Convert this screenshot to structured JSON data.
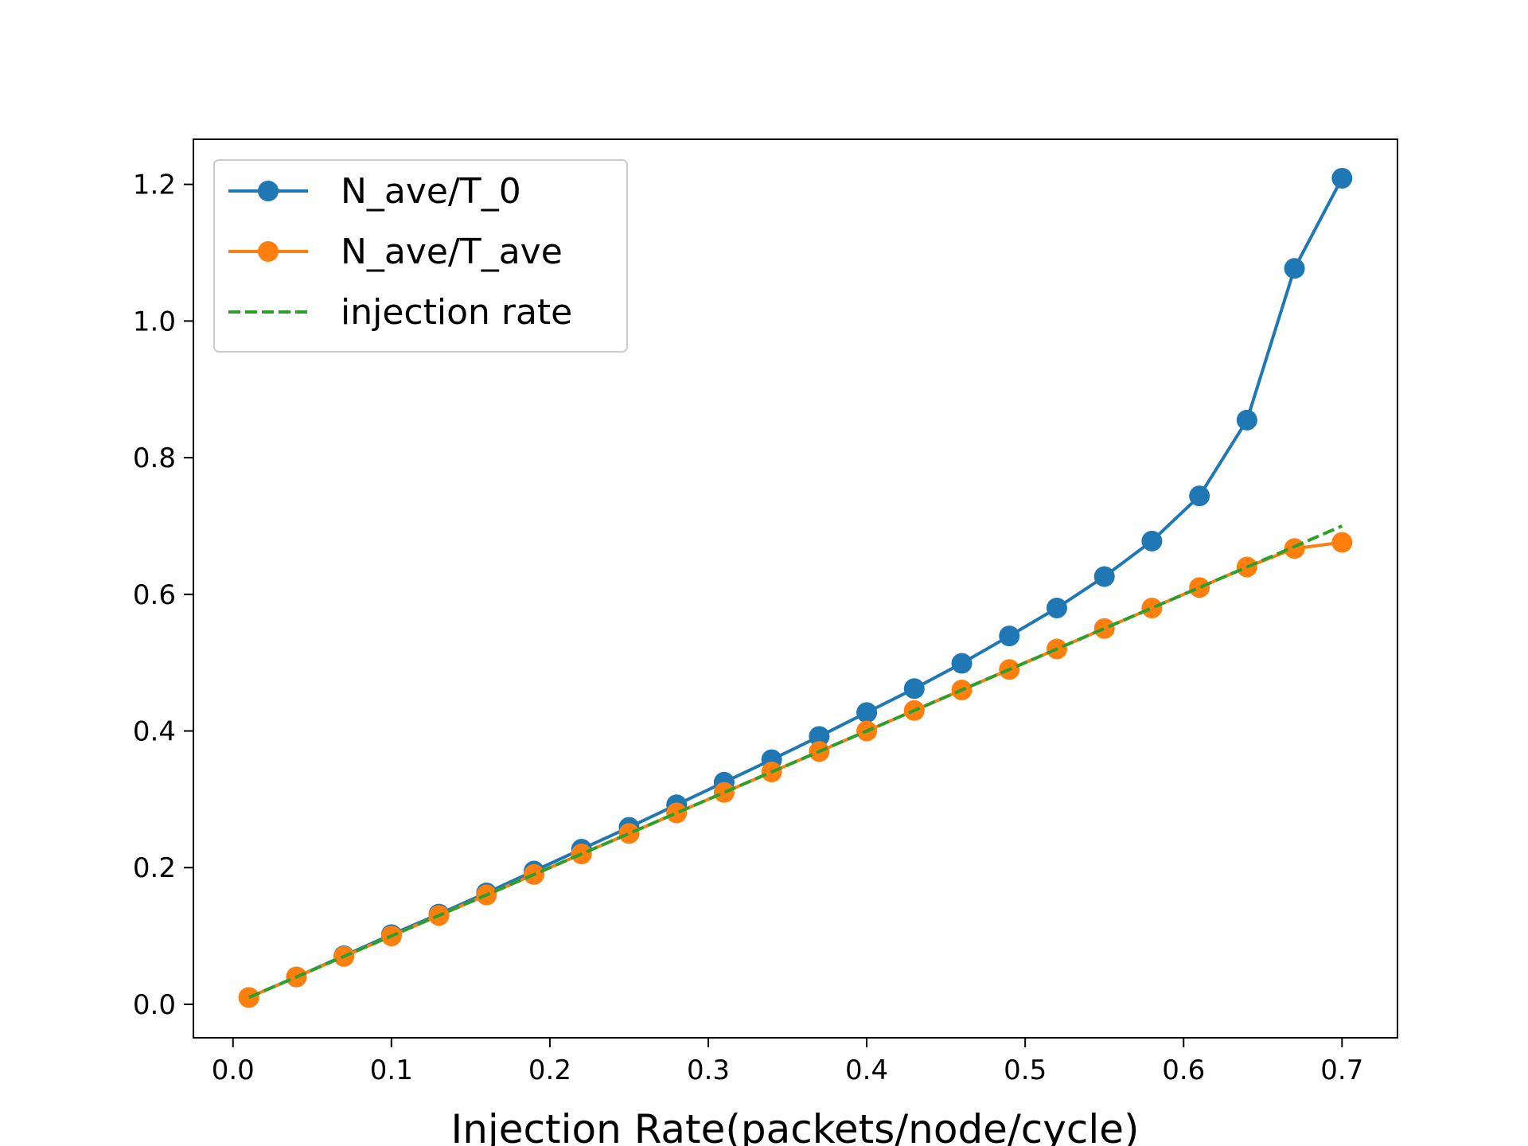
{
  "chart_data": {
    "type": "line",
    "title": "",
    "xlabel": "Injection Rate(packets/node/cycle)",
    "ylabel": "",
    "xlim": [
      -0.025,
      0.735
    ],
    "ylim": [
      -0.049,
      1.266
    ],
    "grid": false,
    "legend_position": "top-left",
    "x_ticks": [
      0.0,
      0.1,
      0.2,
      0.3,
      0.4,
      0.5,
      0.6,
      0.7
    ],
    "x_tick_labels": [
      "0.0",
      "0.1",
      "0.2",
      "0.3",
      "0.4",
      "0.5",
      "0.6",
      "0.7"
    ],
    "y_ticks": [
      0.0,
      0.2,
      0.4,
      0.6,
      0.8,
      1.0,
      1.2
    ],
    "y_tick_labels": [
      "0.0",
      "0.2",
      "0.4",
      "0.6",
      "0.8",
      "1.0",
      "1.2"
    ],
    "x": [
      0.01,
      0.04,
      0.07,
      0.1,
      0.13,
      0.16,
      0.19,
      0.22,
      0.25,
      0.28,
      0.31,
      0.34,
      0.37,
      0.4,
      0.43,
      0.46,
      0.49,
      0.52,
      0.55,
      0.58,
      0.61,
      0.64,
      0.67,
      0.7
    ],
    "series": [
      {
        "name": "N_ave/T_0",
        "color": "#1f77b4",
        "style": "solid-marker",
        "values": [
          0.01,
          0.04,
          0.071,
          0.102,
          0.132,
          0.163,
          0.195,
          0.227,
          0.259,
          0.292,
          0.325,
          0.358,
          0.392,
          0.427,
          0.462,
          0.499,
          0.539,
          0.58,
          0.626,
          0.678,
          0.744,
          0.855,
          1.077,
          1.209
        ]
      },
      {
        "name": "N_ave/T_ave",
        "color": "#ff7f0e",
        "style": "solid-marker",
        "values": [
          0.01,
          0.04,
          0.07,
          0.1,
          0.13,
          0.16,
          0.19,
          0.22,
          0.25,
          0.28,
          0.31,
          0.34,
          0.37,
          0.4,
          0.43,
          0.46,
          0.49,
          0.52,
          0.55,
          0.58,
          0.61,
          0.64,
          0.667,
          0.676
        ]
      },
      {
        "name": "injection rate",
        "color": "#2ca02c",
        "style": "dashed",
        "values": [
          0.01,
          0.04,
          0.07,
          0.1,
          0.13,
          0.16,
          0.19,
          0.22,
          0.25,
          0.28,
          0.31,
          0.34,
          0.37,
          0.4,
          0.43,
          0.46,
          0.49,
          0.52,
          0.55,
          0.58,
          0.61,
          0.64,
          0.67,
          0.7
        ]
      }
    ]
  }
}
